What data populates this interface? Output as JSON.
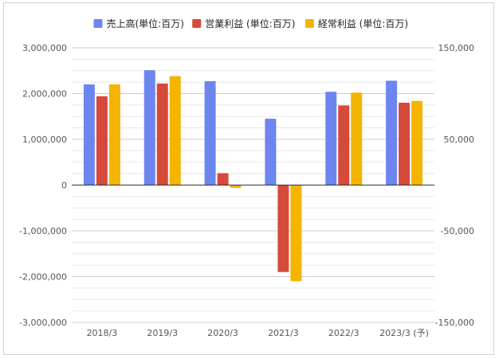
{
  "chart_data": {
    "type": "bar",
    "categories": [
      "2018/3",
      "2019/3",
      "2020/3",
      "2021/3",
      "2022/3",
      "2023/3 (予)"
    ],
    "series": [
      {
        "name": "売上高(単位:百万)",
        "axis": "left",
        "color": "#6d86ef",
        "values": [
          2200000,
          2510000,
          2270000,
          1450000,
          2040000,
          2280000
        ]
      },
      {
        "name": "営業利益 (単位:百万)",
        "axis": "right",
        "color": "#d64a3b",
        "values": [
          97000,
          111000,
          13000,
          -95000,
          87000,
          90000
        ]
      },
      {
        "name": "経常利益 (単位:百万)",
        "axis": "right",
        "color": "#f4b400",
        "values": [
          110000,
          119000,
          -3000,
          -105000,
          101000,
          92000
        ]
      }
    ],
    "left_axis": {
      "ylim": [
        -3000000,
        3000000
      ],
      "ticks": [
        "3,000,000",
        "2,000,000",
        "1,000,000",
        "0",
        "-1,000,000",
        "-2,000,000",
        "-3,000,000"
      ]
    },
    "right_axis": {
      "ylim": [
        -150000,
        150000
      ],
      "ticks": [
        "150,000",
        "50,000",
        "-50,000",
        "-150,000"
      ]
    },
    "legend_position": "top",
    "grid": true
  }
}
